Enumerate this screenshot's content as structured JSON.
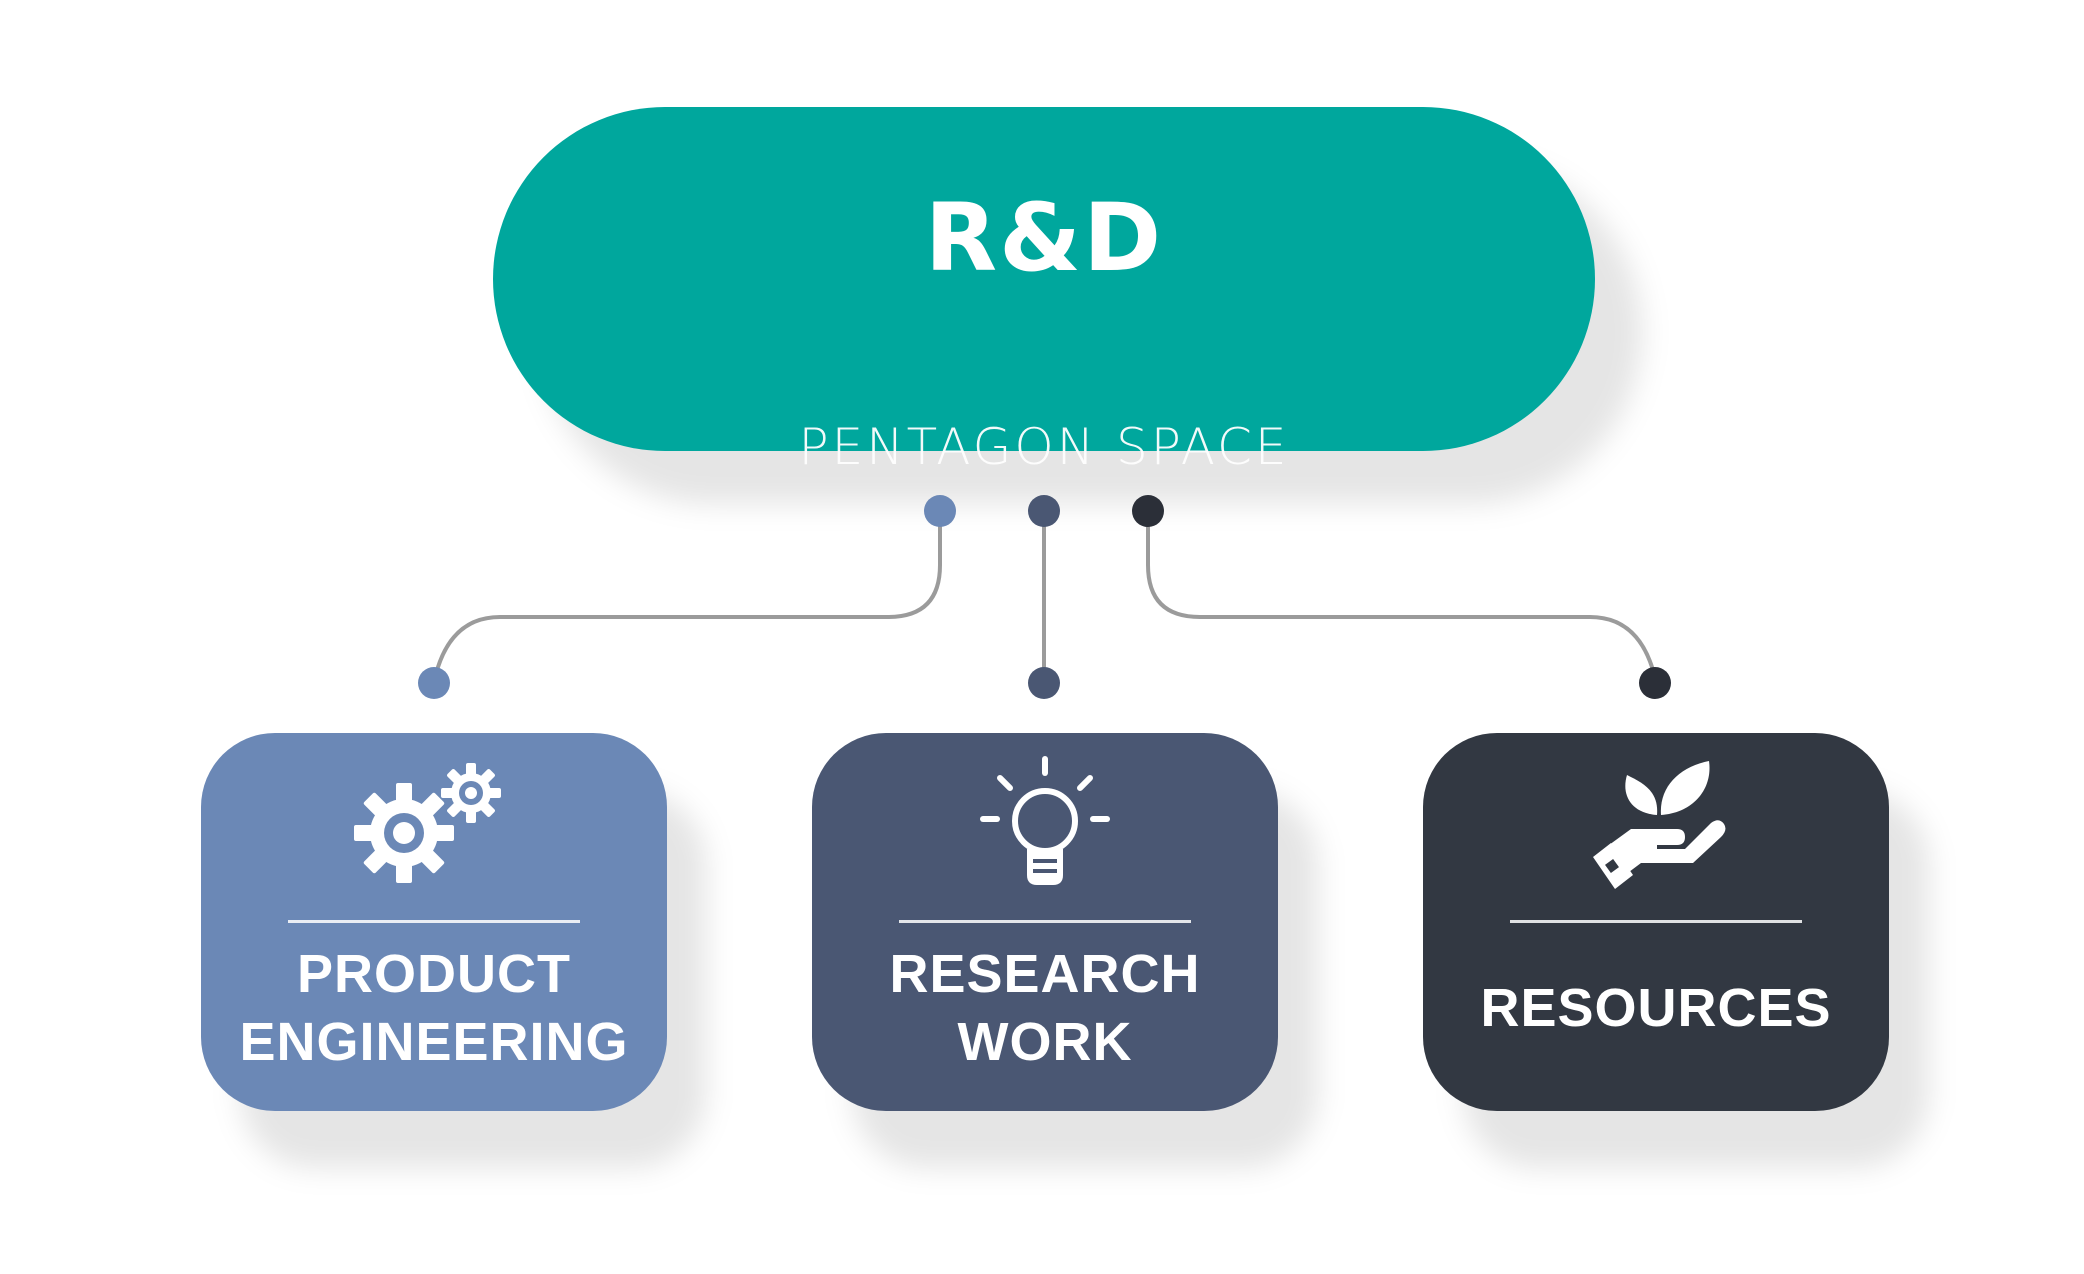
{
  "colors": {
    "accent": "#00a79d",
    "box1": "#6b88b6",
    "box2": "#4a5773",
    "box3": "#323842",
    "connector": "#9b9b9b",
    "dot1": "#6b88b6",
    "dot2": "#4a5773",
    "dot3": "#2b2f38"
  },
  "top": {
    "title": "R&D",
    "subtitle": "PENTAGON SPACE"
  },
  "branches": [
    {
      "icon": "gears-icon",
      "label_lines": [
        "PRODUCT",
        "ENGINEERING"
      ]
    },
    {
      "icon": "lightbulb-icon",
      "label_lines": [
        "RESEARCH",
        "WORK"
      ]
    },
    {
      "icon": "hand-plant-icon",
      "label_lines": [
        "RESOURCES"
      ]
    }
  ]
}
